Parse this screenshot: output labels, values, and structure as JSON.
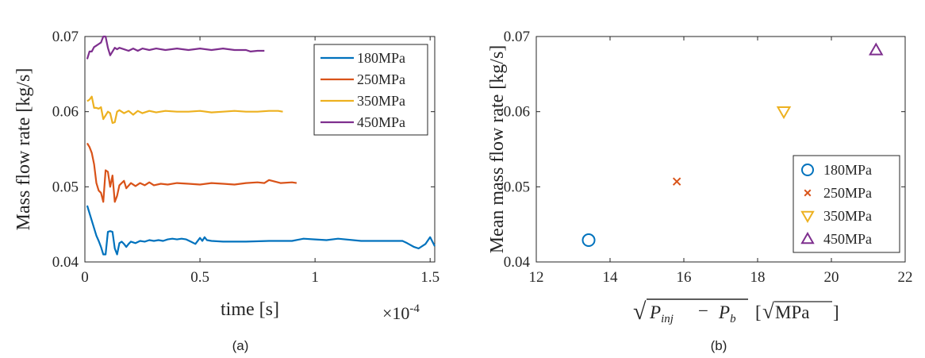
{
  "captions": {
    "a": "(a)",
    "b": "(b)"
  },
  "colors": {
    "c180": "#0072BD",
    "c250": "#D95319",
    "c350": "#EDB120",
    "c450": "#7E2F8E",
    "axis": "#262626"
  },
  "chart_data": [
    {
      "type": "line",
      "xlabel": "time [s]",
      "ylabel": "Mass flow rate [kg/s]",
      "x_exponent": {
        "base": "×10",
        "power": "-4"
      },
      "xlim": [
        0,
        1.52
      ],
      "ylim": [
        0.04,
        0.07
      ],
      "xticks": [
        0,
        0.5,
        1,
        1.5
      ],
      "xtick_labels": [
        "0",
        "0.5",
        "1",
        "1.5"
      ],
      "yticks": [
        0.04,
        0.05,
        0.06,
        0.07
      ],
      "ytick_labels": [
        "0.04",
        "0.05",
        "0.06",
        "0.07"
      ],
      "grid": false,
      "legend_position": "top-right",
      "series": [
        {
          "name": "180MPa",
          "color": "#0072BD",
          "x": [
            0.01,
            0.02,
            0.03,
            0.05,
            0.06,
            0.07,
            0.08,
            0.09,
            0.1,
            0.11,
            0.12,
            0.13,
            0.14,
            0.15,
            0.16,
            0.17,
            0.18,
            0.19,
            0.2,
            0.22,
            0.24,
            0.26,
            0.28,
            0.3,
            0.32,
            0.34,
            0.36,
            0.38,
            0.4,
            0.42,
            0.44,
            0.46,
            0.48,
            0.5,
            0.51,
            0.52,
            0.53,
            0.55,
            0.6,
            0.7,
            0.8,
            0.9,
            0.95,
            1.0,
            1.05,
            1.1,
            1.2,
            1.3,
            1.38,
            1.4,
            1.43,
            1.45,
            1.48,
            1.5,
            1.52
          ],
          "y": [
            0.0475,
            0.0465,
            0.0455,
            0.0435,
            0.0428,
            0.042,
            0.041,
            0.041,
            0.044,
            0.0441,
            0.044,
            0.0418,
            0.041,
            0.0425,
            0.0427,
            0.0424,
            0.042,
            0.0424,
            0.0427,
            0.0425,
            0.0428,
            0.0427,
            0.0429,
            0.0428,
            0.0429,
            0.0428,
            0.043,
            0.0431,
            0.043,
            0.0431,
            0.043,
            0.0427,
            0.0424,
            0.0432,
            0.0428,
            0.0433,
            0.0429,
            0.0428,
            0.0427,
            0.0427,
            0.0428,
            0.0428,
            0.0431,
            0.043,
            0.0429,
            0.0431,
            0.0428,
            0.0428,
            0.0428,
            0.0425,
            0.042,
            0.0418,
            0.0424,
            0.0433,
            0.0421
          ]
        },
        {
          "name": "250MPa",
          "color": "#D95319",
          "x": [
            0.01,
            0.02,
            0.03,
            0.04,
            0.05,
            0.06,
            0.07,
            0.08,
            0.09,
            0.1,
            0.11,
            0.12,
            0.13,
            0.14,
            0.15,
            0.16,
            0.17,
            0.18,
            0.2,
            0.22,
            0.24,
            0.26,
            0.28,
            0.3,
            0.33,
            0.36,
            0.4,
            0.45,
            0.5,
            0.55,
            0.6,
            0.65,
            0.7,
            0.75,
            0.78,
            0.8,
            0.85,
            0.9,
            0.92
          ],
          "y": [
            0.0558,
            0.0553,
            0.0545,
            0.053,
            0.0505,
            0.0495,
            0.0492,
            0.048,
            0.0522,
            0.052,
            0.05,
            0.0515,
            0.048,
            0.0488,
            0.0502,
            0.0505,
            0.0508,
            0.0498,
            0.0505,
            0.0501,
            0.0505,
            0.0502,
            0.0506,
            0.0502,
            0.0504,
            0.0503,
            0.0505,
            0.0504,
            0.0503,
            0.0505,
            0.0504,
            0.0503,
            0.0505,
            0.0506,
            0.0505,
            0.0509,
            0.0505,
            0.0506,
            0.0505
          ]
        },
        {
          "name": "350MPa",
          "color": "#EDB120",
          "x": [
            0.01,
            0.02,
            0.03,
            0.04,
            0.05,
            0.06,
            0.07,
            0.08,
            0.09,
            0.1,
            0.11,
            0.12,
            0.13,
            0.14,
            0.15,
            0.17,
            0.19,
            0.21,
            0.23,
            0.25,
            0.28,
            0.31,
            0.35,
            0.4,
            0.45,
            0.5,
            0.55,
            0.6,
            0.65,
            0.7,
            0.75,
            0.8,
            0.84,
            0.86
          ],
          "y": [
            0.0614,
            0.0616,
            0.062,
            0.0605,
            0.0605,
            0.0604,
            0.0606,
            0.059,
            0.0595,
            0.06,
            0.0598,
            0.0585,
            0.0586,
            0.06,
            0.0602,
            0.0598,
            0.0601,
            0.0596,
            0.0601,
            0.0598,
            0.0601,
            0.0599,
            0.0601,
            0.06,
            0.06,
            0.0601,
            0.0599,
            0.06,
            0.0601,
            0.06,
            0.06,
            0.0601,
            0.0601,
            0.06
          ]
        },
        {
          "name": "450MPa",
          "color": "#7E2F8E",
          "x": [
            0.01,
            0.02,
            0.03,
            0.04,
            0.05,
            0.06,
            0.07,
            0.08,
            0.09,
            0.1,
            0.11,
            0.12,
            0.13,
            0.14,
            0.15,
            0.17,
            0.19,
            0.21,
            0.23,
            0.25,
            0.28,
            0.31,
            0.35,
            0.4,
            0.45,
            0.5,
            0.55,
            0.6,
            0.65,
            0.7,
            0.72,
            0.75,
            0.78
          ],
          "y": [
            0.067,
            0.068,
            0.068,
            0.0686,
            0.0688,
            0.069,
            0.0692,
            0.07,
            0.07,
            0.0685,
            0.0675,
            0.068,
            0.0685,
            0.0683,
            0.0685,
            0.0683,
            0.0681,
            0.0684,
            0.0681,
            0.0684,
            0.0682,
            0.0684,
            0.0682,
            0.0684,
            0.0682,
            0.0684,
            0.0682,
            0.0684,
            0.0682,
            0.0682,
            0.068,
            0.0681,
            0.0681
          ]
        }
      ]
    },
    {
      "type": "scatter",
      "xlabel_parts": {
        "sqrt_open": "√",
        "P": "P",
        "inj_sub": "inj",
        "minus": "−",
        "b_sub": "b",
        "unit_open": "[",
        "unit_sqrt": "√",
        "unit": "MPa",
        "unit_close": "]"
      },
      "ylabel": "Mean mass flow rate [kg/s]",
      "xlim": [
        12,
        22
      ],
      "ylim": [
        0.04,
        0.07
      ],
      "xticks": [
        12,
        14,
        16,
        18,
        20,
        22
      ],
      "xtick_labels": [
        "12",
        "14",
        "16",
        "18",
        "20",
        "22"
      ],
      "yticks": [
        0.04,
        0.05,
        0.06,
        0.07
      ],
      "ytick_labels": [
        "0.04",
        "0.05",
        "0.06",
        "0.07"
      ],
      "grid": false,
      "legend_position": "bottom-right",
      "series": [
        {
          "name": "180MPa",
          "marker": "circle",
          "color": "#0072BD",
          "x": [
            13.42
          ],
          "y": [
            0.0429
          ]
        },
        {
          "name": "250MPa",
          "marker": "x",
          "color": "#D95319",
          "x": [
            15.81
          ],
          "y": [
            0.0507
          ]
        },
        {
          "name": "350MPa",
          "marker": "triangle-down",
          "color": "#EDB120",
          "x": [
            18.71
          ],
          "y": [
            0.06
          ]
        },
        {
          "name": "450MPa",
          "marker": "triangle-up",
          "color": "#7E2F8E",
          "x": [
            21.21
          ],
          "y": [
            0.0682
          ]
        }
      ]
    }
  ]
}
